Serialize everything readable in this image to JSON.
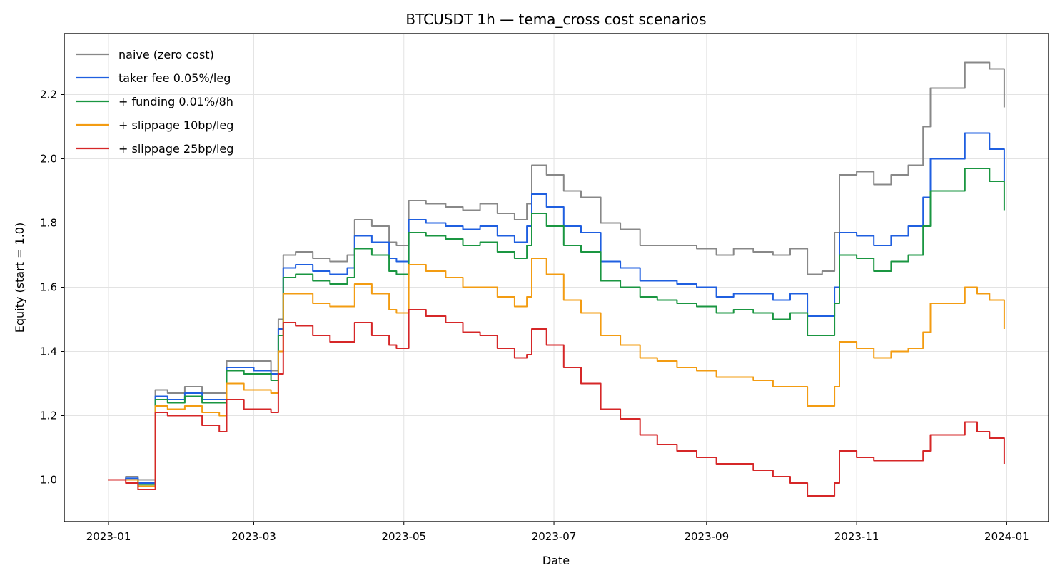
{
  "chart_data": {
    "type": "line",
    "title": "BTCUSDT 1h — tema_cross cost scenarios",
    "xlabel": "Date",
    "ylabel": "Equity (start = 1.0)",
    "xlim": [
      "2022-12-14",
      "2024-01-18"
    ],
    "ylim": [
      0.87,
      2.39
    ],
    "x_ticks": [
      "2023-01-01",
      "2023-03-01",
      "2023-05-01",
      "2023-07-01",
      "2023-09-01",
      "2023-11-01",
      "2024-01-01"
    ],
    "x_tick_labels": [
      "2023-01",
      "2023-03",
      "2023-05",
      "2023-07",
      "2023-09",
      "2023-11",
      "2024-01"
    ],
    "y_ticks": [
      1.0,
      1.2,
      1.4,
      1.6,
      1.8,
      2.0,
      2.2
    ],
    "y_tick_labels": [
      "1.0",
      "1.2",
      "1.4",
      "1.6",
      "1.8",
      "2.0",
      "2.2"
    ],
    "grid": true,
    "legend_position": "top-left",
    "x": [
      "2023-01-01",
      "2023-01-08",
      "2023-01-13",
      "2023-01-20",
      "2023-01-25",
      "2023-02-01",
      "2023-02-08",
      "2023-02-15",
      "2023-02-18",
      "2023-02-25",
      "2023-03-01",
      "2023-03-08",
      "2023-03-11",
      "2023-03-13",
      "2023-03-18",
      "2023-03-25",
      "2023-04-01",
      "2023-04-08",
      "2023-04-11",
      "2023-04-18",
      "2023-04-25",
      "2023-04-28",
      "2023-05-03",
      "2023-05-10",
      "2023-05-18",
      "2023-05-25",
      "2023-06-01",
      "2023-06-08",
      "2023-06-15",
      "2023-06-20",
      "2023-06-22",
      "2023-06-28",
      "2023-07-05",
      "2023-07-12",
      "2023-07-20",
      "2023-07-28",
      "2023-08-05",
      "2023-08-12",
      "2023-08-20",
      "2023-08-28",
      "2023-09-05",
      "2023-09-12",
      "2023-09-20",
      "2023-09-28",
      "2023-10-05",
      "2023-10-12",
      "2023-10-18",
      "2023-10-23",
      "2023-10-25",
      "2023-11-01",
      "2023-11-08",
      "2023-11-15",
      "2023-11-22",
      "2023-11-28",
      "2023-12-01",
      "2023-12-05",
      "2023-12-10",
      "2023-12-15",
      "2023-12-20",
      "2023-12-25",
      "2023-12-31"
    ],
    "series": [
      {
        "name": "naive (zero cost)",
        "color": "#888888",
        "values": [
          1.0,
          1.01,
          1.0,
          1.28,
          1.27,
          1.29,
          1.27,
          1.27,
          1.37,
          1.37,
          1.37,
          1.34,
          1.5,
          1.7,
          1.71,
          1.69,
          1.68,
          1.7,
          1.81,
          1.79,
          1.74,
          1.73,
          1.87,
          1.86,
          1.85,
          1.84,
          1.86,
          1.83,
          1.81,
          1.86,
          1.98,
          1.95,
          1.9,
          1.88,
          1.8,
          1.78,
          1.73,
          1.73,
          1.73,
          1.72,
          1.7,
          1.72,
          1.71,
          1.7,
          1.72,
          1.64,
          1.65,
          1.77,
          1.95,
          1.96,
          1.92,
          1.95,
          1.98,
          2.1,
          2.22,
          2.22,
          2.22,
          2.3,
          2.3,
          2.28,
          2.16
        ]
      },
      {
        "name": "taker fee 0.05%/leg",
        "color": "#1f5fe0",
        "values": [
          1.0,
          1.005,
          0.99,
          1.26,
          1.25,
          1.27,
          1.25,
          1.25,
          1.35,
          1.35,
          1.34,
          1.33,
          1.47,
          1.66,
          1.67,
          1.65,
          1.64,
          1.66,
          1.76,
          1.74,
          1.69,
          1.68,
          1.81,
          1.8,
          1.79,
          1.78,
          1.79,
          1.76,
          1.74,
          1.79,
          1.89,
          1.85,
          1.79,
          1.77,
          1.68,
          1.66,
          1.62,
          1.62,
          1.61,
          1.6,
          1.57,
          1.58,
          1.58,
          1.56,
          1.58,
          1.51,
          1.51,
          1.6,
          1.77,
          1.76,
          1.73,
          1.76,
          1.79,
          1.88,
          2.0,
          2.0,
          2.0,
          2.08,
          2.08,
          2.03,
          1.93
        ]
      },
      {
        "name": "+ funding 0.01%/8h",
        "color": "#1a9641",
        "values": [
          1.0,
          1.0,
          0.985,
          1.25,
          1.24,
          1.26,
          1.24,
          1.24,
          1.34,
          1.33,
          1.33,
          1.31,
          1.45,
          1.63,
          1.64,
          1.62,
          1.61,
          1.63,
          1.72,
          1.7,
          1.65,
          1.64,
          1.77,
          1.76,
          1.75,
          1.73,
          1.74,
          1.71,
          1.69,
          1.73,
          1.83,
          1.79,
          1.73,
          1.71,
          1.62,
          1.6,
          1.57,
          1.56,
          1.55,
          1.54,
          1.52,
          1.53,
          1.52,
          1.5,
          1.52,
          1.45,
          1.45,
          1.55,
          1.7,
          1.69,
          1.65,
          1.68,
          1.7,
          1.79,
          1.9,
          1.9,
          1.9,
          1.97,
          1.97,
          1.93,
          1.84
        ]
      },
      {
        "name": "+ slippage 10bp/leg",
        "color": "#f39c12",
        "values": [
          1.0,
          1.0,
          0.98,
          1.23,
          1.22,
          1.23,
          1.21,
          1.2,
          1.3,
          1.28,
          1.28,
          1.27,
          1.4,
          1.58,
          1.58,
          1.55,
          1.54,
          1.54,
          1.61,
          1.58,
          1.53,
          1.52,
          1.67,
          1.65,
          1.63,
          1.6,
          1.6,
          1.57,
          1.54,
          1.57,
          1.69,
          1.64,
          1.56,
          1.52,
          1.45,
          1.42,
          1.38,
          1.37,
          1.35,
          1.34,
          1.32,
          1.32,
          1.31,
          1.29,
          1.29,
          1.23,
          1.23,
          1.29,
          1.43,
          1.41,
          1.38,
          1.4,
          1.41,
          1.46,
          1.55,
          1.55,
          1.55,
          1.6,
          1.58,
          1.56,
          1.47
        ]
      },
      {
        "name": "+ slippage 25bp/leg",
        "color": "#d62728",
        "values": [
          1.0,
          0.99,
          0.97,
          1.21,
          1.2,
          1.2,
          1.17,
          1.15,
          1.25,
          1.22,
          1.22,
          1.21,
          1.33,
          1.49,
          1.48,
          1.45,
          1.43,
          1.43,
          1.49,
          1.45,
          1.42,
          1.41,
          1.53,
          1.51,
          1.49,
          1.46,
          1.45,
          1.41,
          1.38,
          1.39,
          1.47,
          1.42,
          1.35,
          1.3,
          1.22,
          1.19,
          1.14,
          1.11,
          1.09,
          1.07,
          1.05,
          1.05,
          1.03,
          1.01,
          0.99,
          0.95,
          0.95,
          0.99,
          1.09,
          1.07,
          1.06,
          1.06,
          1.06,
          1.09,
          1.14,
          1.14,
          1.14,
          1.18,
          1.15,
          1.13,
          1.05
        ]
      }
    ]
  }
}
